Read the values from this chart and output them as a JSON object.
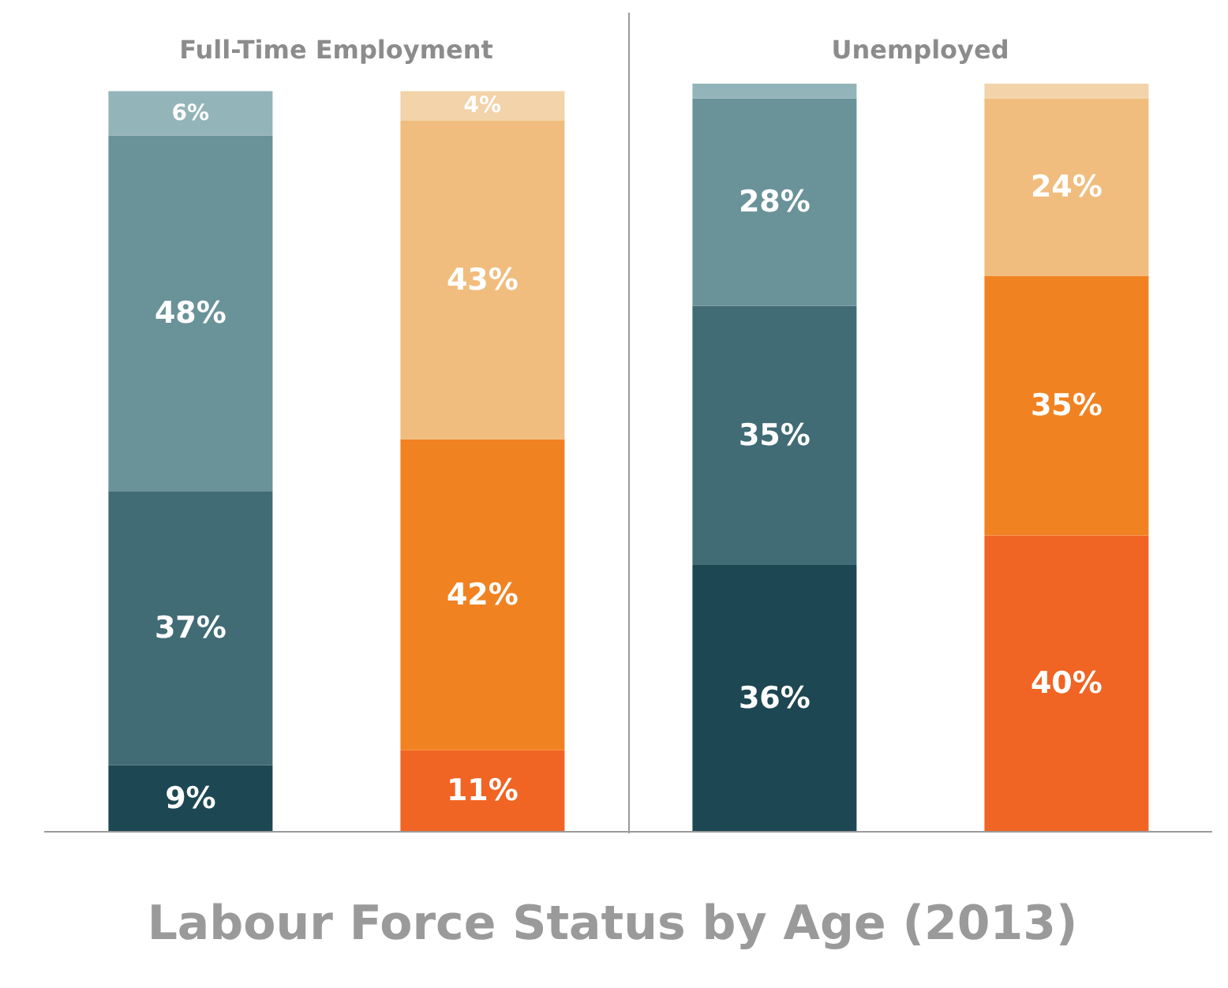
{
  "chart_data": {
    "type": "bar",
    "stacked": true,
    "title": "Labour Force Status by Age (2013)",
    "annotations": [
      "Full-Time Employment",
      "Unemployed"
    ],
    "categories": [
      null,
      null,
      null,
      null
    ],
    "series": [
      {
        "colors": [
          "#1d4752",
          "#f06424",
          "#1d4752",
          "#f06424"
        ],
        "values": [
          9,
          11,
          36,
          40
        ],
        "value_labels": [
          "9%",
          "11%",
          "36%",
          "40%"
        ]
      },
      {
        "colors": [
          "#416b75",
          "#f18221",
          "#416b75",
          "#f18221"
        ],
        "values": [
          37,
          42,
          35,
          35
        ],
        "value_labels": [
          "37%",
          "42%",
          "35%",
          "35%"
        ]
      },
      {
        "colors": [
          "#6a9299",
          "#f0bd7e",
          "#6a9299",
          "#f0bd7e"
        ],
        "values": [
          48,
          43,
          28,
          24
        ],
        "value_labels": [
          "48%",
          "43%",
          "28%",
          "24%"
        ]
      },
      {
        "colors": [
          "#93b4b8",
          "#f3d3aa",
          "#93b4b8",
          "#f3d3aa"
        ],
        "values": [
          6,
          4,
          2,
          2
        ],
        "value_labels": [
          "6%",
          "4%",
          null,
          null
        ]
      }
    ]
  }
}
